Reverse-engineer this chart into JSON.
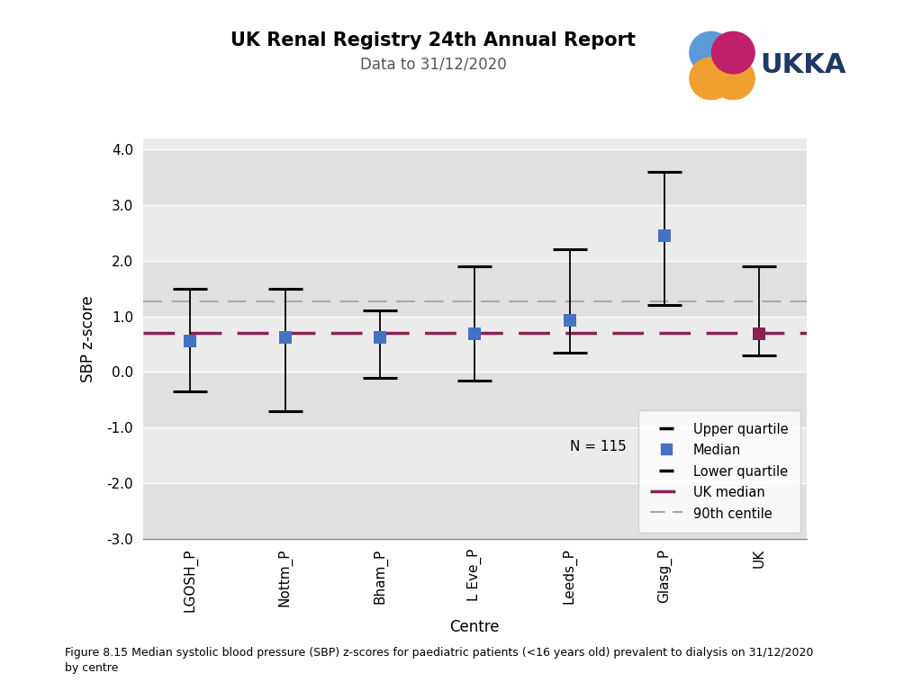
{
  "title": "UK Renal Registry 24th Annual Report",
  "subtitle": "Data to 31/12/2020",
  "xlabel": "Centre",
  "ylabel": "SBP z-score",
  "ylim": [
    -3.0,
    4.2
  ],
  "yticks": [
    -3.0,
    -2.0,
    -1.0,
    0.0,
    1.0,
    2.0,
    3.0,
    4.0
  ],
  "centres": [
    "LGOSH_P",
    "Nottm_P",
    "Bham_P",
    "L Eve_P",
    "Leeds_P",
    "Glasg_P",
    "UK"
  ],
  "medians": [
    0.55,
    0.62,
    0.62,
    0.68,
    0.93,
    2.45,
    0.68
  ],
  "upper_quartiles": [
    1.5,
    1.5,
    1.1,
    1.9,
    2.2,
    3.6,
    1.9
  ],
  "lower_quartiles": [
    -0.35,
    -0.7,
    -0.1,
    -0.15,
    0.35,
    1.2,
    0.3
  ],
  "uk_median": 0.7,
  "centile_90": 1.27,
  "n_label": "N = 115",
  "median_color_centre": "#4472C4",
  "median_color_uk": "#8B2252",
  "uk_median_line_color": "#8B2252",
  "centile_90_line_color": "#AAAAAA",
  "error_bar_color": "#000000",
  "plot_background": "#EBEBEB",
  "band_colors": [
    "#E0E0E0",
    "#EBEBEB"
  ],
  "caption": "Figure 8.15 Median systolic blood pressure (SBP) z-scores for paediatric patients (<16 years old) prevalent to dialysis on 31/12/2020\nby centre",
  "logo_colors": {
    "blue": "#5B9BD5",
    "orange": "#F0A030",
    "magenta": "#C0206A",
    "text_blue": "#1F3864",
    "text_red": "#8B2252"
  }
}
